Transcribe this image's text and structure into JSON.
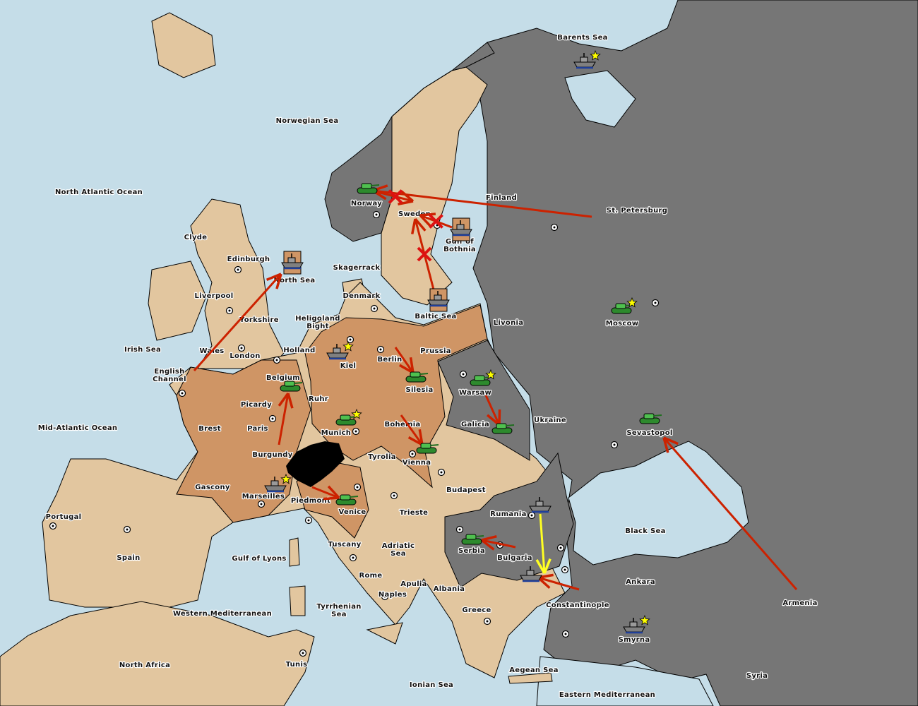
{
  "colors": {
    "sea": "#c5dde8",
    "neutral_land": "#e2c69f",
    "orange_power": "#cf9565",
    "gray_power": "#767676",
    "impassable": "#000000",
    "order_arrow": "#cc2200",
    "support_arrow": "#ffff22",
    "star": "#ffff00"
  },
  "labels": [
    [
      "Barents Sea"
    ],
    [
      "Norwegian Sea"
    ],
    [
      "North Atlantic Ocean"
    ],
    [
      "Finland"
    ],
    [
      "St. Petersburg"
    ],
    [
      "Norway"
    ],
    [
      "Sweden"
    ],
    [
      "Gulf of",
      "Bothnia"
    ],
    [
      "Clyde"
    ],
    [
      "Edinburgh"
    ],
    [
      "North Sea"
    ],
    [
      "Skagerrack"
    ],
    [
      "Liverpool"
    ],
    [
      "Denmark"
    ],
    [
      "Baltic Sea"
    ],
    [
      "Moscow"
    ],
    [
      "Livonia"
    ],
    [
      "Yorkshire"
    ],
    [
      "Heligoland",
      "Bight"
    ],
    [
      "Irish Sea"
    ],
    [
      "Wales"
    ],
    [
      "London"
    ],
    [
      "Holland"
    ],
    [
      "Kiel"
    ],
    [
      "Berlin"
    ],
    [
      "Prussia"
    ],
    [
      "English",
      "Channel"
    ],
    [
      "Belgium"
    ],
    [
      "Silesia"
    ],
    [
      "Warsaw"
    ],
    [
      "Ukraine"
    ],
    [
      "Sevastopol"
    ],
    [
      "Picardy"
    ],
    [
      "Ruhr"
    ],
    [
      "Mid-Atlantic Ocean"
    ],
    [
      "Brest"
    ],
    [
      "Paris"
    ],
    [
      "Munich"
    ],
    [
      "Bohemia"
    ],
    [
      "Galicia"
    ],
    [
      "Tyrolia"
    ],
    [
      "Vienna"
    ],
    [
      "Burgundy"
    ],
    [
      "Budapest"
    ],
    [
      "Gascony"
    ],
    [
      "Marseilles"
    ],
    [
      "Piedmont"
    ],
    [
      "Venice"
    ],
    [
      "Trieste"
    ],
    [
      "Rumania"
    ],
    [
      "Portugal"
    ],
    [
      "Black Sea"
    ],
    [
      "Tuscany"
    ],
    [
      "Serbia"
    ],
    [
      "Adriatic",
      "Sea"
    ],
    [
      "Bulgaria"
    ],
    [
      "Spain"
    ],
    [
      "Gulf of Lyons"
    ],
    [
      "Rome"
    ],
    [
      "Apulia"
    ],
    [
      "Ankara"
    ],
    [
      "Albania"
    ],
    [
      "Naples"
    ],
    [
      "Armenia"
    ],
    [
      "Constantinople"
    ],
    [
      "Greece"
    ],
    [
      "Tyrrhenian",
      "Sea"
    ],
    [
      "Western Mediterranean"
    ],
    [
      "Smyrna"
    ],
    [
      "North Africa"
    ],
    [
      "Tunis"
    ],
    [
      "Aegean Sea"
    ],
    [
      "Syria"
    ],
    [
      "Ionian Sea"
    ],
    [
      "Eastern Mediterranean"
    ]
  ],
  "units": [
    {
      "type": "fleet",
      "province": "Barents Sea",
      "power": "gray",
      "star": true
    },
    {
      "type": "army",
      "province": "Norway",
      "power": "gray",
      "star": false
    },
    {
      "type": "fleet",
      "province": "Gulf of Bothnia",
      "power": "gray",
      "star": false,
      "dislodged": true
    },
    {
      "type": "fleet",
      "province": "North Sea",
      "power": "orange",
      "star": false,
      "dislodged": true
    },
    {
      "type": "fleet",
      "province": "Baltic Sea",
      "power": "orange",
      "star": false,
      "dislodged": true
    },
    {
      "type": "army",
      "province": "Moscow",
      "power": "gray",
      "star": true
    },
    {
      "type": "fleet",
      "province": "Kiel",
      "power": "orange",
      "star": true
    },
    {
      "type": "army",
      "province": "Silesia",
      "power": "orange",
      "star": false
    },
    {
      "type": "army",
      "province": "Warsaw",
      "power": "gray",
      "star": true
    },
    {
      "type": "army",
      "province": "Belgium",
      "power": "orange",
      "star": false
    },
    {
      "type": "army",
      "province": "Sevastopol",
      "power": "gray",
      "star": false
    },
    {
      "type": "army",
      "province": "Galicia",
      "power": "gray",
      "star": false
    },
    {
      "type": "army",
      "province": "Munich",
      "power": "orange",
      "star": true
    },
    {
      "type": "army",
      "province": "Vienna",
      "power": "orange",
      "star": false
    },
    {
      "type": "fleet",
      "province": "Marseilles",
      "power": "orange",
      "star": true
    },
    {
      "type": "army",
      "province": "Venice",
      "power": "orange",
      "star": false
    },
    {
      "type": "fleet",
      "province": "Rumania",
      "power": "gray",
      "star": false
    },
    {
      "type": "army",
      "province": "Serbia",
      "power": "gray",
      "star": false
    },
    {
      "type": "fleet",
      "province": "Aegean Sea",
      "power": "gray",
      "star": false
    },
    {
      "type": "fleet",
      "province": "Smyrna",
      "power": "gray",
      "star": true
    }
  ],
  "orders": [
    {
      "from": "St. Petersburg",
      "to": "Norway",
      "kind": "move",
      "color": "red"
    },
    {
      "from": "Baltic Sea",
      "to": "Sweden",
      "kind": "move",
      "color": "red",
      "failed": true
    },
    {
      "from": "Gulf of Bothnia",
      "to": "Sweden",
      "kind": "move",
      "color": "red",
      "failed": true
    },
    {
      "from": "Norway",
      "to": "Sweden",
      "kind": "move",
      "color": "red",
      "failed": true
    },
    {
      "from": "English Channel",
      "to": "North Sea",
      "kind": "move",
      "color": "red"
    },
    {
      "from": "Burgundy",
      "to": "Belgium",
      "kind": "move",
      "color": "red"
    },
    {
      "from": "Berlin",
      "to": "Silesia",
      "kind": "move",
      "color": "red"
    },
    {
      "from": "Bohemia",
      "to": "Vienna",
      "kind": "move",
      "color": "red"
    },
    {
      "from": "Warsaw",
      "to": "Galicia",
      "kind": "move",
      "color": "red"
    },
    {
      "from": "Piedmont",
      "to": "Venice",
      "kind": "move",
      "color": "red"
    },
    {
      "from": "Armenia",
      "to": "Sevastopol",
      "kind": "move",
      "color": "red"
    },
    {
      "from": "Bulgaria",
      "to": "Serbia",
      "kind": "move",
      "color": "red"
    },
    {
      "from": "Constantinople",
      "to": "Aegean Sea",
      "kind": "move",
      "color": "red"
    },
    {
      "from": "Rumania",
      "to": "Aegean Sea",
      "kind": "convoy",
      "color": "yellow"
    }
  ]
}
